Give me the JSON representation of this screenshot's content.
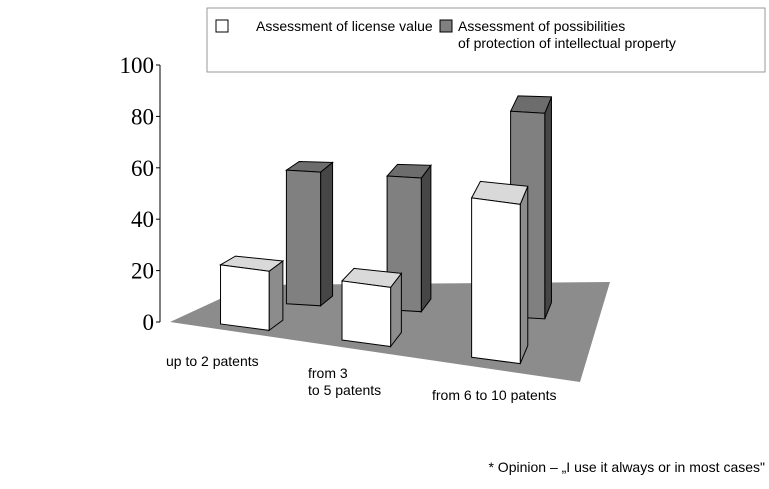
{
  "chart_data": {
    "type": "bar3d",
    "categories": [
      "up to 2 patents",
      "from 3\nto 5 patents",
      "from 6 to 10 patents"
    ],
    "series": [
      {
        "name": "Assessment of license value",
        "color": "#ffffff",
        "values": [
          23,
          23,
          62
        ]
      },
      {
        "name": "Assessment of possibilities\nof protection of intellectual property",
        "color": "#808080",
        "values": [
          52,
          52,
          80
        ]
      }
    ],
    "ylim": [
      0,
      100
    ],
    "yticks": [
      0,
      20,
      40,
      60,
      80,
      100
    ],
    "annotation": "* Opinion – „I use it always or in most cases\""
  }
}
